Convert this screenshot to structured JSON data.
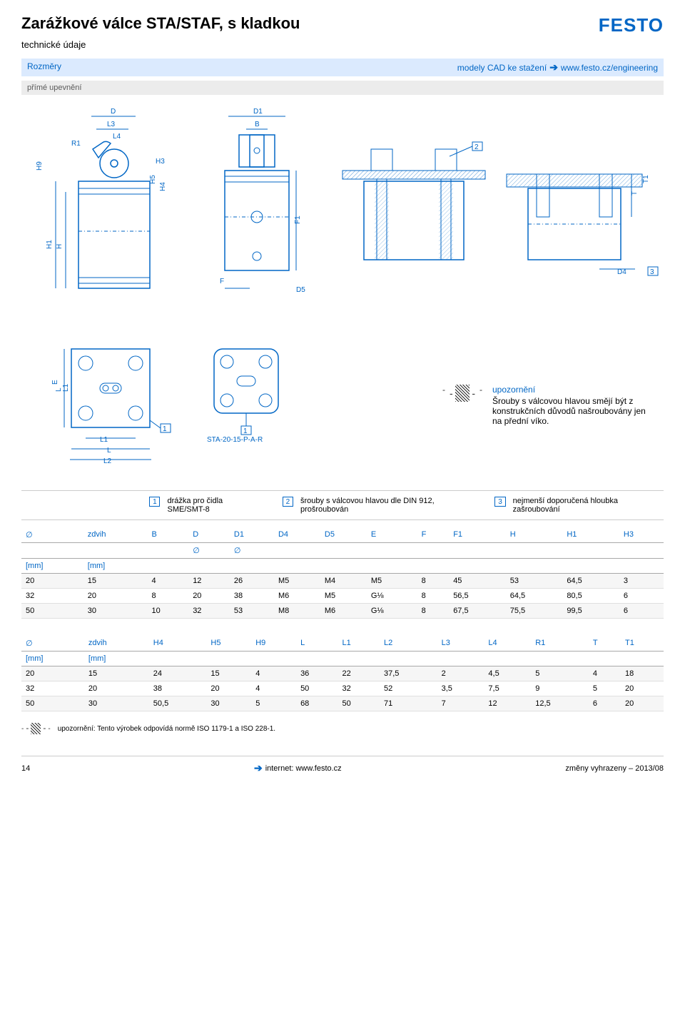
{
  "header": {
    "title": "Zarážkové válce STA/STAF, s kladkou",
    "subtitle": "technické údaje",
    "logo": "FESTO"
  },
  "section": {
    "left": "Rozměry",
    "right_prefix": "modely CAD ke stažení",
    "right_link": "www.festo.cz/engineering",
    "sub": "přímé upevnění"
  },
  "part_label": "STA-20-15-P-A-R",
  "warning": {
    "title": "upozornění",
    "text": "Šrouby s válcovou hlavou smějí být z konstrukčních důvodů našroubovány jen na přední víko."
  },
  "callouts": [
    {
      "n": "1",
      "text": "drážka pro čidla SME/SMT-8"
    },
    {
      "n": "2",
      "text": "šrouby s válcovou hlavou dle DIN 912, prošroubován"
    },
    {
      "n": "3",
      "text": "nejmenší doporučená hloubka zašroubování"
    }
  ],
  "table1": {
    "headers": [
      "",
      "zdvih",
      "B",
      "D",
      "D1",
      "D4",
      "D5",
      "E",
      "F",
      "F1",
      "H",
      "H1",
      "H3"
    ],
    "sub_headers": [
      "",
      "",
      "",
      "∅",
      "∅",
      "",
      "",
      "",
      "",
      "",
      "",
      "",
      ""
    ],
    "units": [
      "[mm]",
      "[mm]",
      "",
      "",
      "",
      "",
      "",
      "",
      "",
      "",
      "",
      "",
      ""
    ],
    "rows": [
      [
        "20",
        "15",
        "4",
        "12",
        "26",
        "M5",
        "M4",
        "M5",
        "8",
        "45",
        "53",
        "64,5",
        "3"
      ],
      [
        "32",
        "20",
        "8",
        "20",
        "38",
        "M6",
        "M5",
        "G⅛",
        "8",
        "56,5",
        "64,5",
        "80,5",
        "6"
      ],
      [
        "50",
        "30",
        "10",
        "32",
        "53",
        "M8",
        "M6",
        "G⅛",
        "8",
        "67,5",
        "75,5",
        "99,5",
        "6"
      ]
    ]
  },
  "table2": {
    "headers": [
      "",
      "zdvih",
      "H4",
      "H5",
      "H9",
      "L",
      "L1",
      "L2",
      "L3",
      "L4",
      "R1",
      "T",
      "T1"
    ],
    "units": [
      "[mm]",
      "[mm]",
      "",
      "",
      "",
      "",
      "",
      "",
      "",
      "",
      "",
      "",
      ""
    ],
    "rows": [
      [
        "20",
        "15",
        "24",
        "15",
        "4",
        "36",
        "22",
        "37,5",
        "2",
        "4,5",
        "5",
        "4",
        "18"
      ],
      [
        "32",
        "20",
        "38",
        "20",
        "4",
        "50",
        "32",
        "52",
        "3,5",
        "7,5",
        "9",
        "5",
        "20"
      ],
      [
        "50",
        "30",
        "50,5",
        "30",
        "5",
        "68",
        "50",
        "71",
        "7",
        "12",
        "12,5",
        "6",
        "20"
      ]
    ]
  },
  "footnote": "upozornění: Tento výrobek odpovídá normě ISO 1179-1 a ISO 228-1.",
  "footer": {
    "page": "14",
    "mid_link": "internet: www.festo.cz",
    "right": "změny vyhrazeny – 2013/08"
  },
  "colors": {
    "blue": "#0066c5",
    "light_blue": "#dbeafe",
    "gray_bar": "#ececec",
    "border": "#e0e0e0"
  },
  "dim_labels": {
    "top_view": [
      "D",
      "L3",
      "L4",
      "R1",
      "H3",
      "H5",
      "H4",
      "H9",
      "H1",
      "H",
      "F1",
      "F",
      "D5"
    ],
    "front_view": [
      "D1",
      "B"
    ],
    "bottom": [
      "L",
      "L1",
      "E",
      "L1",
      "L",
      "L2"
    ],
    "cross": [
      "T1",
      "T",
      "D4"
    ]
  }
}
